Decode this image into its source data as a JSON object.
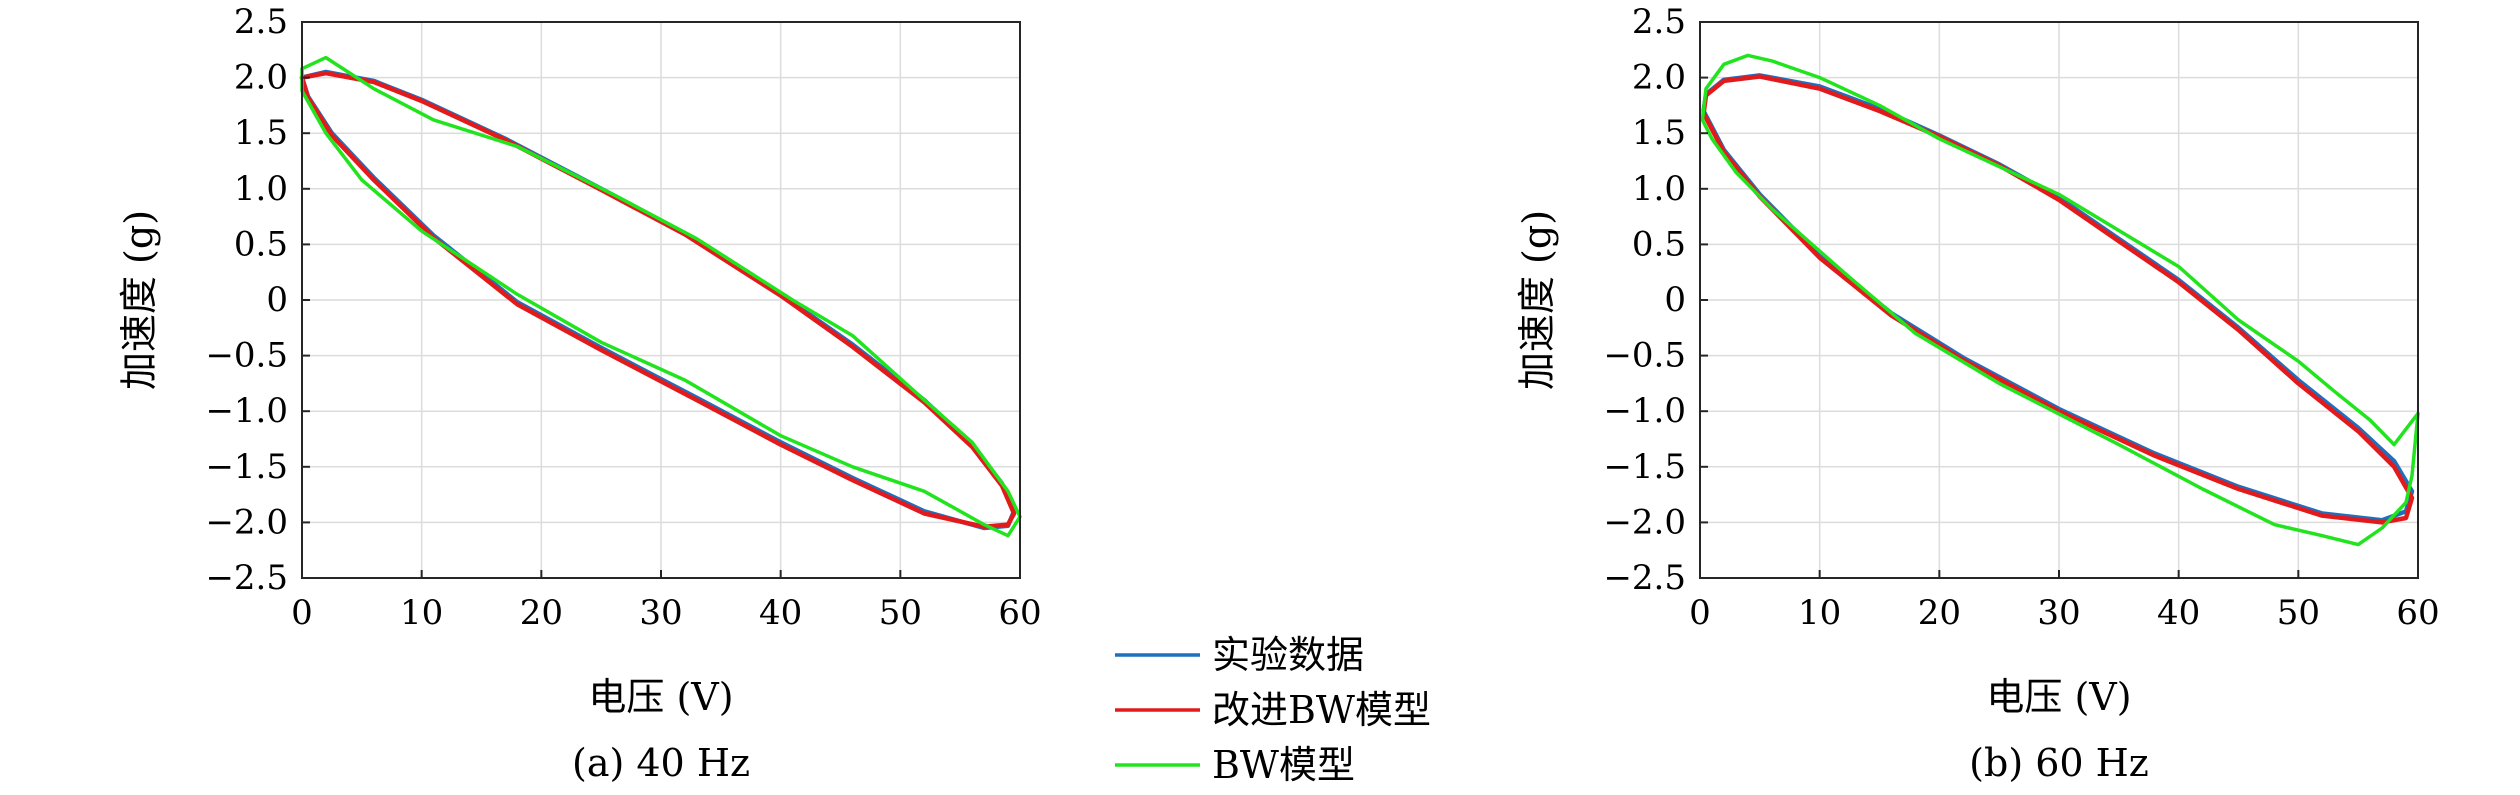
{
  "legend": {
    "entries": [
      {
        "label": "实验数据",
        "color": "#1f6fbf"
      },
      {
        "label": "改进BW模型",
        "color": "#e31a1c"
      },
      {
        "label": "BW模型",
        "color": "#22e41e"
      }
    ]
  },
  "chart_data": [
    {
      "type": "line",
      "caption": "(a) 40 Hz",
      "xlabel": "电压 (V)",
      "ylabel": "加速度 (g)",
      "xlim": [
        0,
        60
      ],
      "ylim": [
        -2.5,
        2.5
      ],
      "xticks": [
        "0",
        "10",
        "20",
        "30",
        "40",
        "50",
        "60"
      ],
      "yticks": [
        "2.5",
        "2.0",
        "1.5",
        "1.0",
        "0.5",
        "0",
        "−0.5",
        "−1.0",
        "−1.5",
        "−2.0",
        "−2.5"
      ],
      "grid": true,
      "series": [
        {
          "name": "实验数据",
          "color": "#1f6fbf",
          "x": [
            0,
            2,
            6,
            10,
            17,
            25,
            32,
            40,
            46,
            52,
            56,
            58.5,
            59.5,
            59,
            57,
            52,
            46,
            40,
            33,
            25,
            18,
            11,
            6,
            2.5,
            0.5
          ],
          "y": [
            2.0,
            2.05,
            1.97,
            1.8,
            1.45,
            1.0,
            0.6,
            0.05,
            -0.4,
            -0.9,
            -1.3,
            -1.65,
            -1.9,
            -2.03,
            -2.05,
            -1.9,
            -1.6,
            -1.28,
            -0.88,
            -0.43,
            -0.02,
            0.58,
            1.1,
            1.5,
            1.83
          ]
        },
        {
          "name": "改进BW模型",
          "color": "#e31a1c",
          "x": [
            0,
            2,
            6,
            10,
            17,
            25,
            32,
            40,
            46,
            52,
            56,
            58.5,
            59.5,
            59,
            57,
            52,
            46,
            40,
            33,
            25,
            18,
            11,
            6,
            2.5,
            0.5
          ],
          "y": [
            2.0,
            2.04,
            1.96,
            1.79,
            1.44,
            0.99,
            0.59,
            0.04,
            -0.42,
            -0.92,
            -1.32,
            -1.67,
            -1.92,
            -2.02,
            -2.04,
            -1.92,
            -1.62,
            -1.3,
            -0.9,
            -0.45,
            -0.04,
            0.56,
            1.08,
            1.48,
            1.82
          ]
        },
        {
          "name": "BW模型",
          "color": "#22e41e",
          "x": [
            0,
            2,
            6,
            11,
            18,
            26,
            33,
            41,
            46,
            52,
            56,
            59,
            60,
            59,
            57,
            52,
            46,
            40,
            32,
            25,
            18,
            10,
            5,
            2,
            0
          ],
          "y": [
            2.08,
            2.18,
            1.9,
            1.62,
            1.38,
            0.95,
            0.55,
            0.0,
            -0.32,
            -0.9,
            -1.28,
            -1.72,
            -1.95,
            -2.12,
            -2.02,
            -1.72,
            -1.5,
            -1.22,
            -0.72,
            -0.38,
            0.05,
            0.62,
            1.08,
            1.5,
            1.88
          ]
        }
      ]
    },
    {
      "type": "line",
      "caption": "(b) 60 Hz",
      "xlabel": "电压 (V)",
      "ylabel": "加速度 (g)",
      "xlim": [
        0,
        60
      ],
      "ylim": [
        -2.5,
        2.5
      ],
      "xticks": [
        "0",
        "10",
        "20",
        "30",
        "40",
        "50",
        "60"
      ],
      "yticks": [
        "2.5",
        "2.0",
        "1.5",
        "1.0",
        "0.5",
        "0",
        "−0.5",
        "−1.0",
        "−1.5",
        "−2.0",
        "−2.5"
      ],
      "grid": true,
      "series": [
        {
          "name": "实验数据",
          "color": "#1f6fbf",
          "x": [
            0.5,
            2,
            5,
            10,
            15,
            20,
            25,
            30,
            35,
            40,
            45,
            50,
            55,
            58,
            59.5,
            59,
            57,
            52,
            45,
            38,
            30,
            22,
            16,
            10,
            5,
            2,
            0.3
          ],
          "y": [
            1.85,
            1.98,
            2.02,
            1.92,
            1.72,
            1.48,
            1.22,
            0.92,
            0.55,
            0.18,
            -0.25,
            -0.72,
            -1.15,
            -1.45,
            -1.72,
            -1.9,
            -1.98,
            -1.92,
            -1.68,
            -1.38,
            -0.98,
            -0.52,
            -0.12,
            0.4,
            0.95,
            1.35,
            1.7
          ]
        },
        {
          "name": "改进BW模型",
          "color": "#e31a1c",
          "x": [
            0.5,
            2,
            5,
            10,
            15,
            20,
            25,
            30,
            35,
            40,
            45,
            50,
            55,
            58,
            59.5,
            59,
            57,
            52,
            45,
            38,
            30,
            22,
            16,
            10,
            5,
            2,
            0.3
          ],
          "y": [
            1.84,
            1.97,
            2.01,
            1.9,
            1.7,
            1.47,
            1.21,
            0.9,
            0.53,
            0.16,
            -0.27,
            -0.75,
            -1.18,
            -1.5,
            -1.78,
            -1.96,
            -2.0,
            -1.94,
            -1.7,
            -1.4,
            -1.0,
            -0.54,
            -0.14,
            0.38,
            0.93,
            1.33,
            1.68
          ]
        },
        {
          "name": "BW模型",
          "color": "#22e41e",
          "x": [
            0.5,
            2,
            4,
            6,
            10,
            15,
            20,
            30,
            40,
            45,
            50,
            53,
            56,
            58,
            60,
            59.5,
            59,
            57,
            55,
            52,
            48,
            42,
            35,
            25,
            18,
            12,
            6,
            3,
            1,
            0.2
          ],
          "y": [
            1.9,
            2.12,
            2.2,
            2.15,
            2.0,
            1.75,
            1.45,
            0.95,
            0.3,
            -0.18,
            -0.55,
            -0.82,
            -1.08,
            -1.3,
            -1.02,
            -1.58,
            -1.82,
            -2.05,
            -2.2,
            -2.12,
            -2.02,
            -1.7,
            -1.3,
            -0.75,
            -0.3,
            0.25,
            0.82,
            1.15,
            1.45,
            1.62
          ]
        }
      ]
    }
  ]
}
